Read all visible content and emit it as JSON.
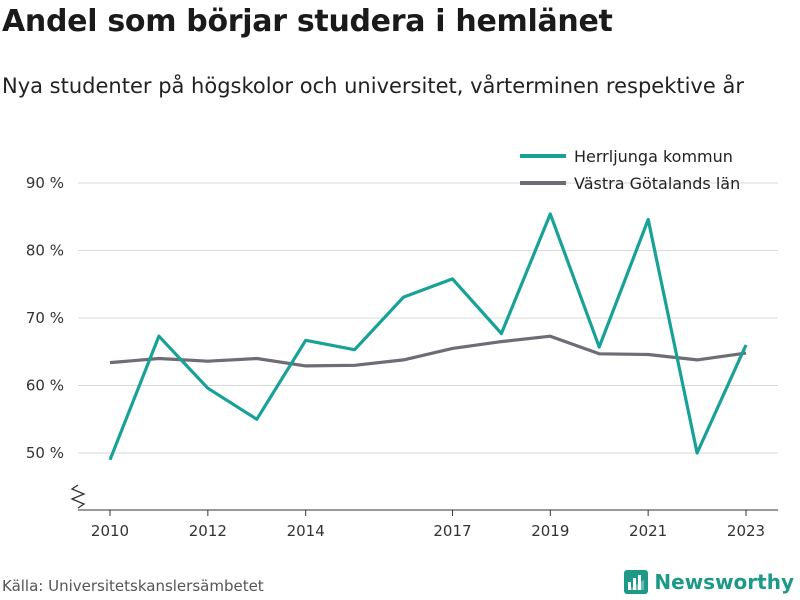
{
  "title": "Andel som börjar studera i hemlänet",
  "subtitle": "Nya studenter på högskolor och universitet, vårterminen respektive år",
  "source": "Källa: Universitetskanslersämbetet",
  "brand": {
    "name": "Newsworthy",
    "icon": "newsworthy-logo-icon",
    "color": "#1e9987"
  },
  "chart_data": {
    "type": "line",
    "title": "Andel som börjar studera i hemlänet",
    "subtitle": "Nya studenter på högskolor och universitet, vårterminen respektive år",
    "x": [
      2010,
      2011,
      2012,
      2013,
      2014,
      2015,
      2016,
      2017,
      2018,
      2019,
      2020,
      2021,
      2022,
      2023
    ],
    "x_tick_labels": [
      "2010",
      "2012",
      "2014",
      "2017",
      "2019",
      "2021",
      "2023"
    ],
    "y_ticks": [
      50,
      60,
      70,
      80,
      90
    ],
    "y_tick_labels": [
      "50 %",
      "60 %",
      "70 %",
      "80 %",
      "90 %"
    ],
    "ylim": [
      41.5,
      92
    ],
    "y_axis_break": true,
    "grid": true,
    "legend_position": "top-right",
    "series": [
      {
        "name": "Herrljunga kommun",
        "color": "#18a297",
        "values": [
          49.0,
          67.3,
          59.6,
          55.0,
          66.7,
          65.3,
          73.1,
          75.8,
          67.7,
          85.4,
          65.7,
          84.6,
          50.0,
          66.0
        ]
      },
      {
        "name": "Västra Götalands län",
        "color": "#6e6c75",
        "values": [
          63.4,
          64.0,
          63.6,
          64.0,
          62.9,
          63.0,
          63.8,
          65.5,
          66.5,
          67.3,
          64.7,
          64.6,
          63.8,
          64.8
        ]
      }
    ]
  }
}
